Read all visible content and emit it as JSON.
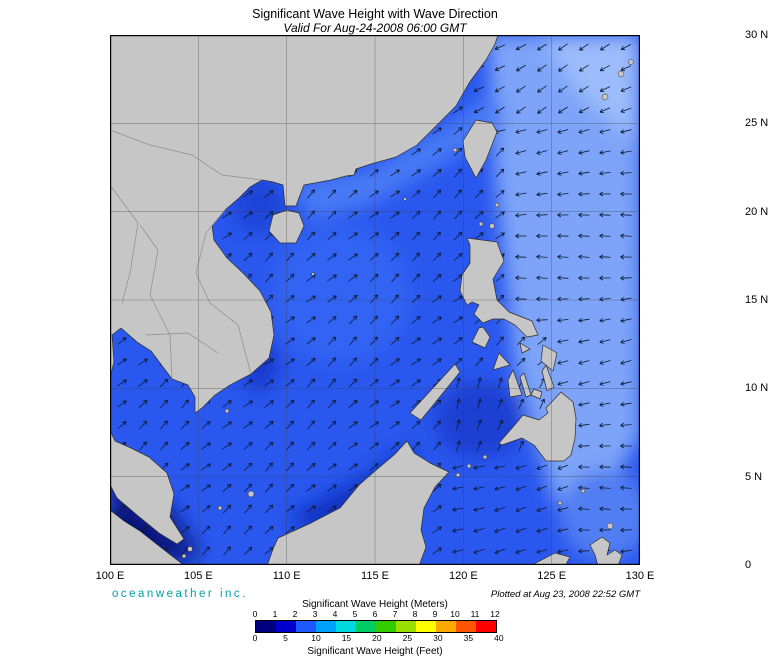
{
  "title": "Significant Wave Height with Wave Direction",
  "subtitle": "Valid For Aug-24-2008 06:00 GMT",
  "credit": "oceanweather inc.",
  "plotted": "Plotted at Aug 23, 2008 22:52 GMT",
  "axes": {
    "lon_labels": [
      "100 E",
      "105 E",
      "110 E",
      "115 E",
      "120 E",
      "125 E",
      "130 E"
    ],
    "lat_labels": [
      "30 N",
      "25 N",
      "20 N",
      "15 N",
      "10 N",
      "5 N",
      "0"
    ]
  },
  "legend": {
    "meters_title": "Significant Wave Height (Meters)",
    "feet_title": "Significant Wave Height (Feet)",
    "meters_ticks": [
      "0",
      "1",
      "2",
      "3",
      "4",
      "5",
      "6",
      "7",
      "8",
      "9",
      "10",
      "11",
      "12"
    ],
    "feet_ticks": [
      "0",
      "5",
      "10",
      "15",
      "20",
      "25",
      "30",
      "35",
      "40"
    ],
    "colors": [
      "#000080",
      "#0000cc",
      "#2058ff",
      "#00a0ff",
      "#00d8e0",
      "#00cc66",
      "#33cc00",
      "#99e000",
      "#ffff00",
      "#ffaa00",
      "#ff5500",
      "#fe0000"
    ]
  },
  "map": {
    "land": "#c6c6c6",
    "coast": "#2e2e2e",
    "country_border": "#8e8e8e",
    "ocean_base": "#2a57ee",
    "pacific": "#7da4f8",
    "pacific_ne": "#9cbcfb",
    "coastal_china": "#4a7af5",
    "scs_bright": "#3363f3",
    "tonkin": "#1d44d8",
    "viet_coast": "#1636ca",
    "malacca": "#0a1a8e",
    "malacca_deep": "#03105e",
    "borneo_coast": "#1130c2",
    "sulu": "#1c40d2",
    "celebes_light": "#517ef2",
    "arrow": "#0c1a34",
    "grid": "#3c3c3c",
    "border": "#000000"
  }
}
